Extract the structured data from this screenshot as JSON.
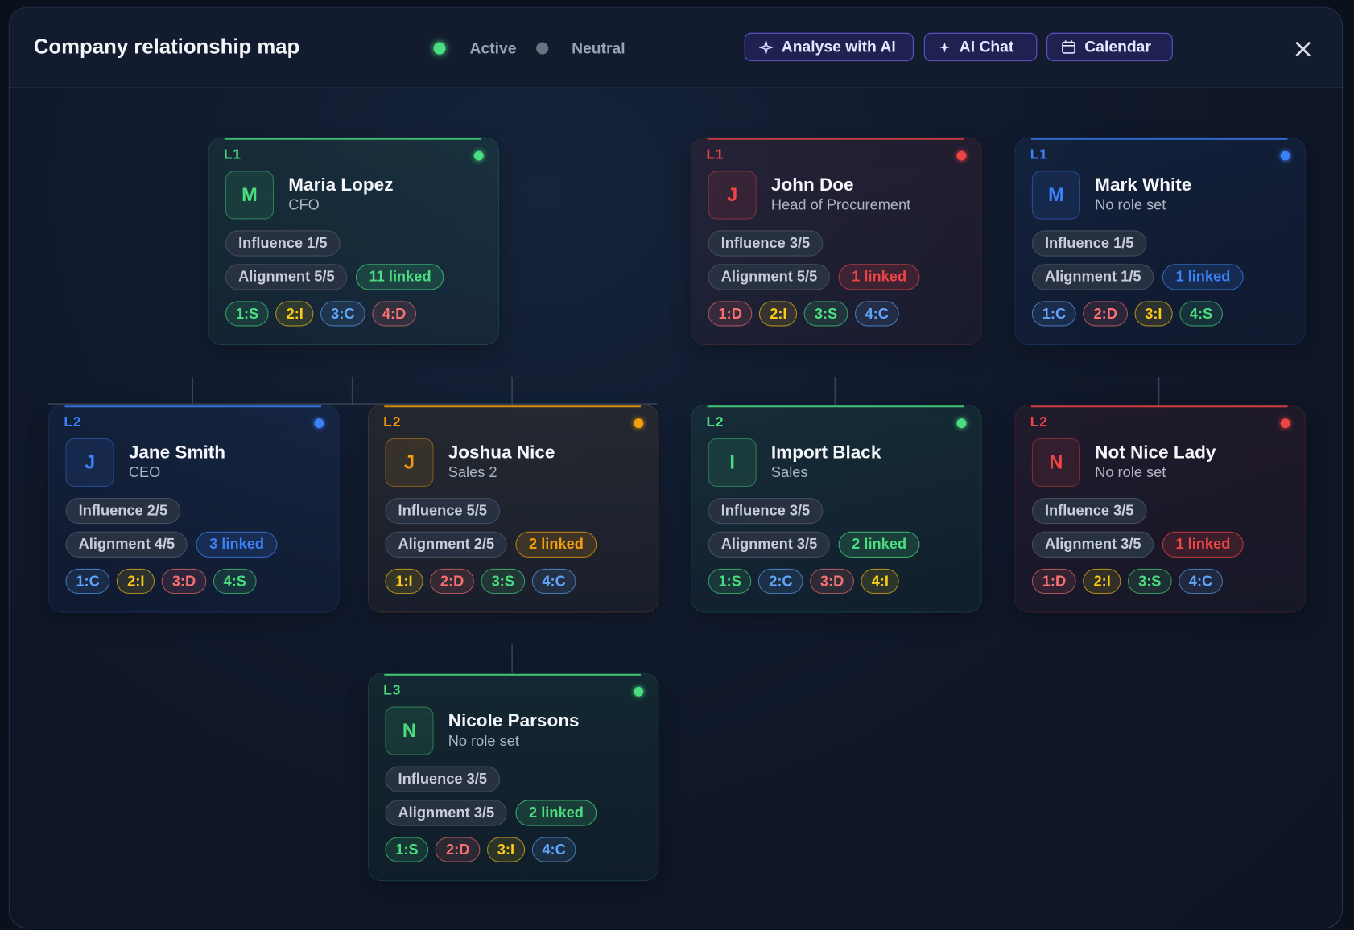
{
  "header": {
    "title": "Company relationship map",
    "legend": [
      {
        "label": "Active",
        "color": "#4ade80"
      },
      {
        "label": "Neutral",
        "color": "#6b7280"
      }
    ],
    "buttons": [
      "Analyse with AI",
      "AI Chat",
      "Calendar"
    ]
  },
  "nodes": [
    {
      "level": "L1",
      "initial": "M",
      "name": "Maria Lopez",
      "role": "CFO",
      "influence": "Influence 1/5",
      "alignment": "Alignment 5/5",
      "linked": "11 linked",
      "tags": [
        "1:S",
        "2:I",
        "3:C",
        "4:D"
      ],
      "color": "#4ade80"
    },
    {
      "level": "L1",
      "initial": "J",
      "name": "John Doe",
      "role": "Head of Procurement",
      "influence": "Influence 3/5",
      "alignment": "Alignment 5/5",
      "linked": "1 linked",
      "tags": [
        "1:D",
        "2:I",
        "3:S",
        "4:C"
      ],
      "color": "#ef4444"
    },
    {
      "level": "L1",
      "initial": "M",
      "name": "Mark White",
      "role": "No role set",
      "influence": "Influence 1/5",
      "alignment": "Alignment 1/5",
      "linked": "1 linked",
      "tags": [
        "1:C",
        "2:D",
        "3:I",
        "4:S"
      ],
      "color": "#3b82f6"
    },
    {
      "level": "L2",
      "initial": "J",
      "name": "Jane Smith",
      "role": "CEO",
      "influence": "Influence 2/5",
      "alignment": "Alignment 4/5",
      "linked": "3 linked",
      "tags": [
        "1:C",
        "2:I",
        "3:D",
        "4:S"
      ],
      "color": "#3b82f6"
    },
    {
      "level": "L2",
      "initial": "J",
      "name": "Joshua Nice",
      "role": "Sales 2",
      "influence": "Influence 5/5",
      "alignment": "Alignment 2/5",
      "linked": "2 linked",
      "tags": [
        "1:I",
        "2:D",
        "3:S",
        "4:C"
      ],
      "color": "#f59e0b"
    },
    {
      "level": "L2",
      "initial": "I",
      "name": "Import Black",
      "role": "Sales",
      "influence": "Influence 3/5",
      "alignment": "Alignment 3/5",
      "linked": "2 linked",
      "tags": [
        "1:S",
        "2:C",
        "3:D",
        "4:I"
      ],
      "color": "#4ade80"
    },
    {
      "level": "L2",
      "initial": "N",
      "name": "Not Nice Lady",
      "role": "No role set",
      "influence": "Influence 3/5",
      "alignment": "Alignment 3/5",
      "linked": "1 linked",
      "tags": [
        "1:D",
        "2:I",
        "3:S",
        "4:C"
      ],
      "color": "#ef4444"
    },
    {
      "level": "L3",
      "initial": "N",
      "name": "Nicole Parsons",
      "role": "No role set",
      "influence": "Influence 3/5",
      "alignment": "Alignment 3/5",
      "linked": "2 linked",
      "tags": [
        "1:S",
        "2:D",
        "3:I",
        "4:C"
      ],
      "color": "#4ade80"
    }
  ]
}
